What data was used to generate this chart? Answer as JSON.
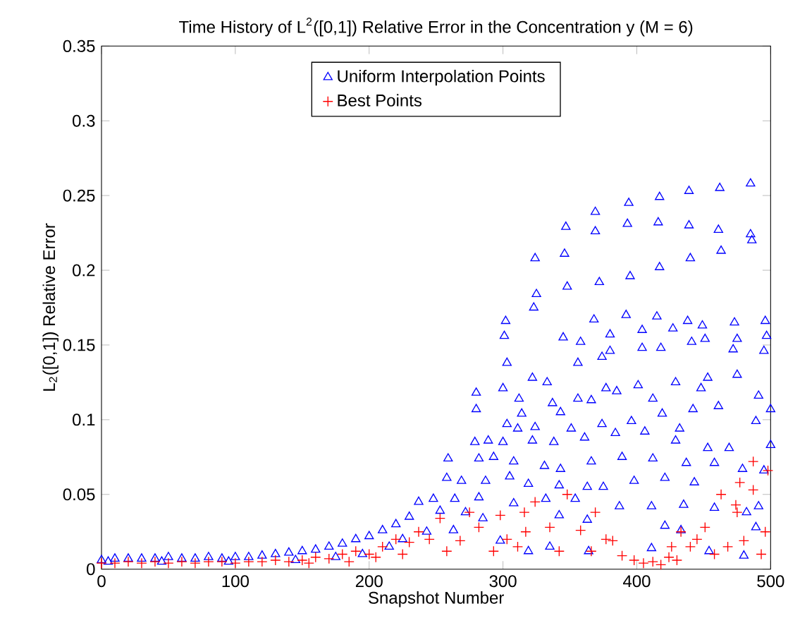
{
  "chart_data": {
    "type": "scatter",
    "title": "Time History of L$^{2}$([0,1]) Relative Error in the Concentration y (M = 6)",
    "xlabel": "Snapshot Number",
    "ylabel": "L$_{2}$([0,1]) Relative Error",
    "xlim": [
      0,
      500
    ],
    "ylim": [
      0,
      0.35
    ],
    "xticks": [
      0,
      100,
      200,
      300,
      400,
      500
    ],
    "yticks": [
      0,
      0.05,
      0.1,
      0.15,
      0.2,
      0.25,
      0.3,
      0.35
    ],
    "legend": "top",
    "grid": false,
    "series": [
      {
        "name": "Uniform Interpolation Points",
        "color": "#0000ff",
        "marker": "triangle",
        "x": [
          0,
          10,
          20,
          30,
          40,
          50,
          60,
          70,
          80,
          90,
          100,
          110,
          120,
          130,
          140,
          150,
          160,
          170,
          180,
          190,
          200,
          210,
          220,
          230,
          5,
          45,
          95,
          145,
          175,
          195,
          215,
          225,
          347,
          369,
          394,
          417,
          439,
          462,
          485,
          369,
          393,
          416,
          439,
          461,
          485,
          486,
          324,
          346,
          372,
          395,
          417,
          440,
          463,
          348,
          325,
          323,
          302,
          301,
          368,
          392,
          415,
          438,
          449,
          473,
          496,
          345,
          358,
          380,
          404,
          427,
          451,
          475,
          497,
          380,
          404,
          418,
          441,
          472,
          495,
          303,
          322,
          333,
          356,
          374,
          280,
          300,
          312,
          280,
          314,
          337,
          356,
          366,
          377,
          385,
          401,
          412,
          429,
          448,
          453,
          475,
          491,
          500,
          303,
          311,
          324,
          343,
          351,
          374,
          396,
          419,
          432,
          442,
          461,
          489,
          279,
          289,
          300,
          322,
          338,
          361,
          384,
          406,
          429,
          453,
          469,
          500,
          259,
          282,
          293,
          308,
          331,
          343,
          366,
          389,
          412,
          437,
          458,
          479,
          495,
          258,
          269,
          287,
          305,
          319,
          342,
          363,
          375,
          398,
          421,
          443,
          237,
          248,
          264,
          282,
          308,
          332,
          354,
          387,
          411,
          435,
          458,
          491,
          253,
          272,
          285,
          342,
          363,
          421,
          433,
          482,
          243,
          263,
          298,
          319,
          335,
          364,
          411,
          454,
          480,
          489
        ],
        "values": [
          0.006,
          0.007,
          0.007,
          0.007,
          0.007,
          0.008,
          0.007,
          0.007,
          0.008,
          0.007,
          0.008,
          0.008,
          0.009,
          0.01,
          0.011,
          0.012,
          0.013,
          0.015,
          0.017,
          0.02,
          0.022,
          0.026,
          0.03,
          0.035,
          0.005,
          0.005,
          0.005,
          0.006,
          0.008,
          0.01,
          0.015,
          0.02,
          0.229,
          0.239,
          0.245,
          0.249,
          0.253,
          0.255,
          0.258,
          0.226,
          0.231,
          0.232,
          0.23,
          0.227,
          0.224,
          0.22,
          0.208,
          0.211,
          0.192,
          0.196,
          0.202,
          0.208,
          0.213,
          0.189,
          0.184,
          0.175,
          0.166,
          0.156,
          0.167,
          0.17,
          0.169,
          0.166,
          0.163,
          0.165,
          0.166,
          0.155,
          0.152,
          0.157,
          0.16,
          0.161,
          0.154,
          0.154,
          0.156,
          0.146,
          0.148,
          0.148,
          0.152,
          0.147,
          0.146,
          0.138,
          0.128,
          0.125,
          0.138,
          0.142,
          0.118,
          0.121,
          0.114,
          0.107,
          0.104,
          0.111,
          0.114,
          0.113,
          0.121,
          0.119,
          0.123,
          0.114,
          0.125,
          0.121,
          0.128,
          0.13,
          0.116,
          0.107,
          0.097,
          0.094,
          0.095,
          0.105,
          0.094,
          0.097,
          0.099,
          0.104,
          0.094,
          0.107,
          0.109,
          0.099,
          0.085,
          0.086,
          0.085,
          0.086,
          0.085,
          0.088,
          0.091,
          0.092,
          0.086,
          0.081,
          0.081,
          0.083,
          0.074,
          0.074,
          0.075,
          0.072,
          0.069,
          0.067,
          0.072,
          0.075,
          0.074,
          0.071,
          0.071,
          0.067,
          0.066,
          0.061,
          0.059,
          0.059,
          0.062,
          0.057,
          0.056,
          0.055,
          0.055,
          0.059,
          0.061,
          0.058,
          0.045,
          0.047,
          0.047,
          0.048,
          0.044,
          0.047,
          0.047,
          0.042,
          0.042,
          0.043,
          0.041,
          0.042,
          0.039,
          0.038,
          0.034,
          0.036,
          0.033,
          0.029,
          0.026,
          0.038,
          0.025,
          0.026,
          0.019,
          0.012,
          0.015,
          0.012,
          0.014,
          0.012,
          0.009,
          0.028
        ]
      },
      {
        "name": "Best Points",
        "color": "#ff0000",
        "marker": "cross",
        "x": [
          0,
          10,
          20,
          30,
          40,
          50,
          60,
          70,
          80,
          90,
          100,
          110,
          120,
          130,
          140,
          150,
          160,
          170,
          180,
          190,
          200,
          210,
          220,
          230,
          155,
          185,
          205,
          225,
          487,
          498,
          477,
          487,
          463,
          474,
          348,
          324,
          275,
          298,
          253,
          369,
          335,
          358,
          382,
          398,
          412,
          424,
          440,
          451,
          445,
          458,
          468,
          480,
          493,
          496,
          475,
          317,
          293,
          268,
          237,
          245,
          282,
          311,
          342,
          366,
          377,
          389,
          426,
          433,
          316,
          303,
          258,
          405,
          418,
          430
        ],
        "values": [
          0.004,
          0.004,
          0.005,
          0.004,
          0.005,
          0.004,
          0.005,
          0.004,
          0.005,
          0.005,
          0.004,
          0.005,
          0.005,
          0.006,
          0.005,
          0.006,
          0.008,
          0.007,
          0.01,
          0.012,
          0.01,
          0.015,
          0.02,
          0.018,
          0.004,
          0.005,
          0.008,
          0.01,
          0.072,
          0.066,
          0.058,
          0.053,
          0.05,
          0.043,
          0.05,
          0.045,
          0.038,
          0.036,
          0.034,
          0.038,
          0.028,
          0.026,
          0.019,
          0.006,
          0.005,
          0.008,
          0.015,
          0.028,
          0.02,
          0.01,
          0.015,
          0.019,
          0.01,
          0.025,
          0.038,
          0.025,
          0.012,
          0.019,
          0.025,
          0.02,
          0.028,
          0.015,
          0.012,
          0.012,
          0.02,
          0.009,
          0.015,
          0.025,
          0.038,
          0.02,
          0.012,
          0.004,
          0.003,
          0.006
        ]
      }
    ]
  }
}
